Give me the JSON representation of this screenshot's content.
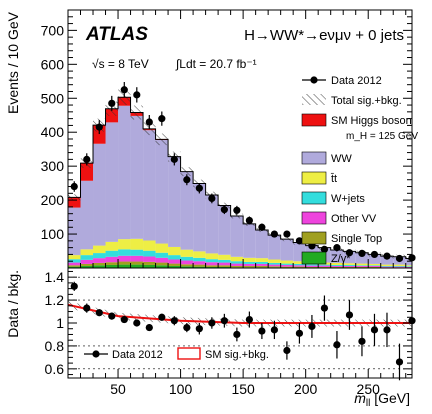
{
  "chart_data": [
    {
      "type": "bar",
      "experiment": "ATLAS",
      "process": "H→WW*→eνμν + 0 jets",
      "energy": "√s = 8 TeV",
      "lumi": "∫Ldt = 20.7 fb⁻¹",
      "ylabel": "Events / 10 GeV",
      "xlabel": "m_ll [GeV]",
      "xlim": [
        10,
        285
      ],
      "ylim": [
        0,
        760
      ],
      "yticks": [
        100,
        200,
        300,
        400,
        500,
        600,
        700
      ],
      "legend_position": "top-right",
      "bin_edges": [
        10,
        20,
        30,
        40,
        50,
        60,
        70,
        80,
        90,
        100,
        110,
        120,
        130,
        140,
        150,
        160,
        170,
        180,
        190,
        200,
        210,
        220,
        230,
        240,
        250,
        260,
        270,
        280,
        285
      ],
      "stack": [
        {
          "name": "Z/γ*",
          "color": "#22aa22",
          "values": [
            4,
            6,
            8,
            9,
            10,
            10,
            9,
            8,
            6,
            5,
            4,
            3,
            3,
            2,
            2,
            2,
            2,
            1,
            1,
            1,
            1,
            1,
            1,
            1,
            1,
            1,
            1,
            0,
            0
          ]
        },
        {
          "name": "Single Top",
          "color": "#a0a020",
          "values": [
            4,
            6,
            7,
            8,
            9,
            9,
            9,
            8,
            7,
            6,
            6,
            5,
            5,
            4,
            4,
            4,
            3,
            3,
            3,
            2,
            2,
            2,
            2,
            2,
            2,
            1,
            1,
            1,
            1
          ]
        },
        {
          "name": "Other VV",
          "color": "#ee44dd",
          "values": [
            8,
            12,
            14,
            16,
            17,
            17,
            16,
            14,
            12,
            11,
            10,
            9,
            8,
            7,
            6,
            6,
            5,
            5,
            4,
            4,
            4,
            3,
            3,
            3,
            3,
            2,
            2,
            2,
            2
          ]
        },
        {
          "name": "W+jets",
          "color": "#33dddd",
          "values": [
            10,
            14,
            15,
            18,
            19,
            18,
            17,
            15,
            13,
            11,
            10,
            9,
            8,
            7,
            6,
            6,
            5,
            4,
            4,
            4,
            3,
            3,
            3,
            2,
            2,
            2,
            2,
            2,
            2
          ]
        },
        {
          "name": "t̄t",
          "color": "#eeee44",
          "values": [
            12,
            17,
            22,
            26,
            30,
            32,
            30,
            27,
            24,
            21,
            19,
            17,
            15,
            13,
            12,
            11,
            10,
            9,
            8,
            7,
            6,
            6,
            5,
            5,
            4,
            4,
            4,
            3,
            3
          ]
        },
        {
          "name": "WW",
          "color": "#b0aadc",
          "values": [
            140,
            202,
            300,
            352,
            393,
            362,
            325,
            305,
            265,
            230,
            200,
            172,
            145,
            120,
            100,
            83,
            72,
            63,
            55,
            48,
            44,
            38,
            35,
            32,
            28,
            25,
            23,
            20,
            20
          ]
        },
        {
          "name": "SM Higgs boson",
          "color": "#ee1111",
          "values": [
            30,
            52,
            55,
            40,
            25,
            10,
            4,
            2,
            1,
            0,
            0,
            0,
            0,
            0,
            0,
            0,
            0,
            0,
            0,
            0,
            0,
            0,
            0,
            0,
            0,
            0,
            0,
            0,
            0
          ]
        }
      ],
      "data_points": {
        "name": "Data 2012",
        "x": [
          15,
          25,
          35,
          45,
          55,
          65,
          75,
          85,
          95,
          105,
          115,
          125,
          135,
          145,
          155,
          165,
          175,
          185,
          195,
          205,
          215,
          225,
          235,
          245,
          255,
          265,
          275,
          285
        ],
        "y": [
          240,
          320,
          415,
          485,
          525,
          510,
          430,
          440,
          320,
          260,
          235,
          205,
          172,
          170,
          140,
          120,
          100,
          100,
          80,
          65,
          55,
          60,
          45,
          43,
          40,
          35,
          28,
          30
        ]
      },
      "legend": [
        {
          "label": "Data 2012",
          "kind": "data"
        },
        {
          "label": "Total sig.+bkg.",
          "kind": "hatch"
        },
        {
          "label": "SM Higgs boson",
          "kind": "box",
          "color": "#ee1111"
        },
        {
          "label": "m_H = 125 GeV",
          "kind": "text"
        },
        {
          "label": "WW",
          "kind": "box",
          "color": "#b0aadc"
        },
        {
          "label": "t̄t",
          "kind": "box",
          "color": "#eeee44"
        },
        {
          "label": "W+jets",
          "kind": "box",
          "color": "#33dddd"
        },
        {
          "label": "Other VV",
          "kind": "box",
          "color": "#ee44dd"
        },
        {
          "label": "Single Top",
          "kind": "box",
          "color": "#a0a020"
        },
        {
          "label": "Z/γ*",
          "kind": "box",
          "color": "#22aa22"
        }
      ]
    },
    {
      "type": "scatter",
      "ylabel": "Data / bkg.",
      "xlabel": "m_ll [GeV]",
      "xlim": [
        10,
        285
      ],
      "ylim": [
        0.52,
        1.48
      ],
      "yticks": [
        0.6,
        0.8,
        1.0,
        1.2,
        1.4
      ],
      "ytick_labels": [
        "0.6",
        "0.8",
        "1",
        "1.2",
        "1.4"
      ],
      "xticks": [
        50,
        100,
        150,
        200,
        250
      ],
      "dashed_lines": [
        0.6,
        0.8,
        1.2,
        1.4
      ],
      "ratio_points": {
        "name": "Data 2012",
        "x": [
          15,
          25,
          35,
          45,
          55,
          65,
          75,
          85,
          95,
          105,
          115,
          125,
          135,
          145,
          155,
          165,
          175,
          185,
          195,
          205,
          215,
          225,
          235,
          245,
          255,
          265,
          275,
          285
        ],
        "y": [
          1.32,
          1.13,
          1.09,
          1.06,
          1.03,
          1.0,
          0.96,
          1.05,
          1.02,
          0.96,
          0.95,
          1.0,
          1.02,
          0.9,
          1.03,
          0.93,
          0.94,
          0.76,
          0.91,
          0.97,
          1.13,
          0.81,
          1.07,
          0.84,
          0.94,
          0.94,
          0.66,
          1.02
        ],
        "err": [
          0.04,
          0.04,
          0.03,
          0.03,
          0.03,
          0.03,
          0.03,
          0.03,
          0.04,
          0.04,
          0.05,
          0.05,
          0.06,
          0.06,
          0.07,
          0.07,
          0.08,
          0.08,
          0.09,
          0.1,
          0.11,
          0.12,
          0.13,
          0.13,
          0.14,
          0.15,
          0.16,
          0.16
        ]
      },
      "band": {
        "name": "SM sig.+bkg.",
        "color": "#ee1111",
        "x": [
          10,
          50,
          100,
          150,
          200,
          250,
          285
        ],
        "y": [
          1.16,
          1.06,
          1.02,
          1.0,
          1.0,
          1.0,
          1.0
        ]
      },
      "legend": [
        {
          "label": "Data 2012",
          "kind": "data"
        },
        {
          "label": "SM sig.+bkg.",
          "kind": "box-outline",
          "color": "#ee1111"
        }
      ]
    }
  ]
}
